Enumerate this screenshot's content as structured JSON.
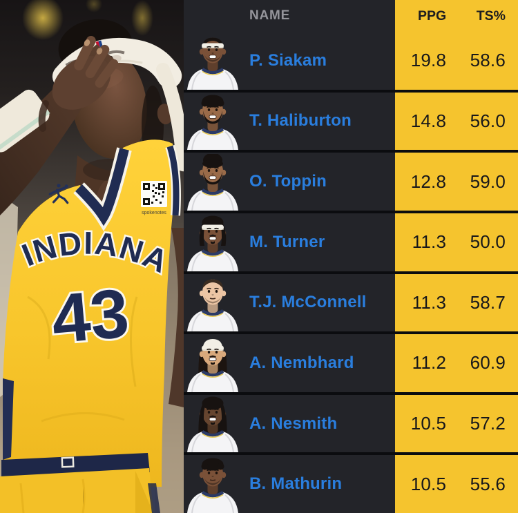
{
  "table": {
    "headers": {
      "name": "NAME",
      "ppg": "PPG",
      "ts": "TS%"
    },
    "rows": [
      {
        "name": "P. Siakam",
        "ppg": "19.8",
        "ts": "58.6",
        "avatar": {
          "skin": "#7a5138",
          "hair": "short",
          "hair_color": "#171210",
          "headband": true,
          "durag": false,
          "back_hair": false,
          "facial": "stubble",
          "smile": true
        }
      },
      {
        "name": "T. Haliburton",
        "ppg": "14.8",
        "ts": "56.0",
        "avatar": {
          "skin": "#9a6b49",
          "hair": "curly",
          "hair_color": "#171210",
          "headband": false,
          "durag": false,
          "back_hair": false,
          "facial": "full",
          "smile": true
        }
      },
      {
        "name": "O. Toppin",
        "ppg": "12.8",
        "ts": "59.0",
        "avatar": {
          "skin": "#9a6b49",
          "hair": "hightop",
          "hair_color": "#171210",
          "headband": false,
          "durag": false,
          "back_hair": false,
          "facial": "full",
          "smile": true
        }
      },
      {
        "name": "M. Turner",
        "ppg": "11.3",
        "ts": "50.0",
        "avatar": {
          "skin": "#7a5138",
          "hair": "locs",
          "hair_color": "#171210",
          "headband": true,
          "durag": false,
          "back_hair": false,
          "facial": "goatee",
          "smile": true
        }
      },
      {
        "name": "T.J. McConnell",
        "ppg": "11.3",
        "ts": "58.7",
        "avatar": {
          "skin": "#ecc5a4",
          "hair": "short",
          "hair_color": "#3b2c20",
          "headband": false,
          "durag": false,
          "back_hair": false,
          "facial": "stubble",
          "smile": false
        }
      },
      {
        "name": "A. Nembhard",
        "ppg": "11.2",
        "ts": "60.9",
        "avatar": {
          "skin": "#d9a97c",
          "hair": "none",
          "hair_color": "#1c1410",
          "headband": true,
          "durag": true,
          "back_hair": true,
          "facial": "goatee",
          "smile": true
        }
      },
      {
        "name": "A. Nesmith",
        "ppg": "10.5",
        "ts": "57.2",
        "avatar": {
          "skin": "#66452f",
          "hair": "locs",
          "hair_color": "#171210",
          "headband": false,
          "durag": false,
          "back_hair": true,
          "facial": "goatee",
          "smile": true
        }
      },
      {
        "name": "B. Mathurin",
        "ppg": "10.5",
        "ts": "55.6",
        "avatar": {
          "skin": "#7a5138",
          "hair": "curly",
          "hair_color": "#171210",
          "headband": false,
          "durag": false,
          "back_hair": false,
          "facial": "stubble",
          "smile": false
        }
      }
    ]
  },
  "photo": {
    "jersey_team": "INDIANA",
    "jersey_number": "43",
    "qr_label": "spokenotes"
  },
  "colors": {
    "stat_column_yellow": "#f5c42e",
    "table_background": "#232429",
    "row_divider": "#0b0c0f",
    "player_name_blue": "#2a7ede",
    "header_gray": "#95959b",
    "jersey_navy": "#202c52",
    "jersey_yellow": "#f8c62c"
  }
}
